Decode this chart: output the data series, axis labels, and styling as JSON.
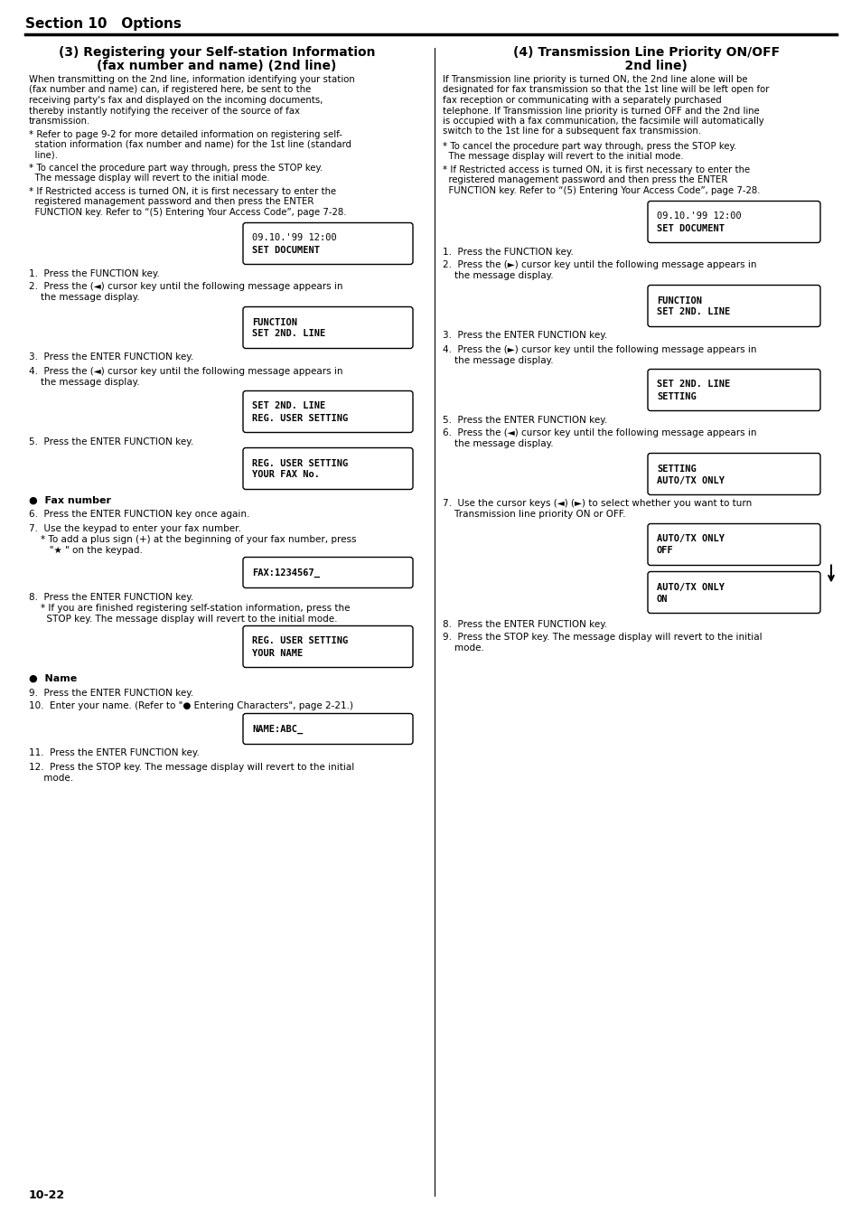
{
  "page_bg": "#ffffff",
  "section_title": "Section 10   Options",
  "footer_text": "10-22",
  "left_col": {
    "heading1": "(3) Registering your Self-station Information",
    "heading2": "(fax number and name) (2nd line)",
    "intro_lines": [
      "When transmitting on the 2nd line, information identifying your station",
      "(fax number and name) can, if registered here, be sent to the",
      "receiving party's fax and displayed on the incoming documents,",
      "thereby instantly notifying the receiver of the source of fax",
      "transmission."
    ],
    "bullet1_lines": [
      "* Refer to page 9-2 for more detailed information on registering self-",
      "  station information (fax number and name) for the 1st line (standard",
      "  line)."
    ],
    "bullet2_lines": [
      "* To cancel the procedure part way through, press the STOP key.",
      "  The message display will revert to the initial mode."
    ],
    "bullet3_lines": [
      "* If Restricted access is turned ON, it is first necessary to enter the",
      "  registered management password and then press the ENTER",
      "  FUNCTION key. Refer to “(5) Entering Your Access Code”, page 7-28."
    ],
    "box1_lines": [
      "09.10.'99 12:00",
      "SET DOCUMENT"
    ],
    "step1": "1.  Press the FUNCTION key.",
    "step2_lines": [
      "2.  Press the (◄) cursor key until the following message appears in",
      "    the message display."
    ],
    "box2_lines": [
      "FUNCTION",
      "SET 2ND. LINE"
    ],
    "step3": "3.  Press the ENTER FUNCTION key.",
    "step4_lines": [
      "4.  Press the (◄) cursor key until the following message appears in",
      "    the message display."
    ],
    "box3_lines": [
      "SET 2ND. LINE",
      "REG. USER SETTING"
    ],
    "step5": "5.  Press the ENTER FUNCTION key.",
    "box4_lines": [
      "REG. USER SETTING",
      "YOUR FAX No."
    ],
    "fax_heading": "●  Fax number",
    "step6": "6.  Press the ENTER FUNCTION key once again.",
    "step7_lines": [
      "7.  Use the keypad to enter your fax number.",
      "    * To add a plus sign (+) at the beginning of your fax number, press",
      "       \"★ \" on the keypad."
    ],
    "box5_lines": [
      "FAX:1234567_"
    ],
    "step8_lines": [
      "8.  Press the ENTER FUNCTION key.",
      "    * If you are finished registering self-station information, press the",
      "      STOP key. The message display will revert to the initial mode."
    ],
    "box6_lines": [
      "REG. USER SETTING",
      "YOUR NAME"
    ],
    "name_heading": "●  Name",
    "step9": "9.  Press the ENTER FUNCTION key.",
    "step10": "10.  Enter your name. (Refer to \"● Entering Characters\", page 2-21.)",
    "box7_lines": [
      "NAME:ABC_"
    ],
    "step11": "11.  Press the ENTER FUNCTION key.",
    "step12_lines": [
      "12.  Press the STOP key. The message display will revert to the initial",
      "     mode."
    ]
  },
  "right_col": {
    "heading1": "(4) Transmission Line Priority ON/OFF",
    "heading2": "2nd line)",
    "intro_lines": [
      "If Transmission line priority is turned ON, the 2nd line alone will be",
      "designated for fax transmission so that the 1st line will be left open for",
      "fax reception or communicating with a separately purchased",
      "telephone. If Transmission line priority is turned OFF and the 2nd line",
      "is occupied with a fax communication, the facsimile will automatically",
      "switch to the 1st line for a subsequent fax transmission."
    ],
    "bullet1_lines": [
      "* To cancel the procedure part way through, press the STOP key.",
      "  The message display will revert to the initial mode."
    ],
    "bullet2_lines": [
      "* If Restricted access is turned ON, it is first necessary to enter the",
      "  registered management password and then press the ENTER",
      "  FUNCTION key. Refer to “(5) Entering Your Access Code”, page 7-28."
    ],
    "box1_lines": [
      "09.10.'99 12:00",
      "SET DOCUMENT"
    ],
    "step1": "1.  Press the FUNCTION key.",
    "step2_lines": [
      "2.  Press the (►) cursor key until the following message appears in",
      "    the message display."
    ],
    "box2_lines": [
      "FUNCTION",
      "SET 2ND. LINE"
    ],
    "step3": "3.  Press the ENTER FUNCTION key.",
    "step4_lines": [
      "4.  Press the (►) cursor key until the following message appears in",
      "    the message display."
    ],
    "box3_lines": [
      "SET 2ND. LINE",
      "SETTING"
    ],
    "step5": "5.  Press the ENTER FUNCTION key.",
    "step6_lines": [
      "6.  Press the (◄) cursor key until the following message appears in",
      "    the message display."
    ],
    "box4_lines": [
      "SETTING",
      "AUTO/TX ONLY"
    ],
    "step7_lines": [
      "7.  Use the cursor keys (◄) (►) to select whether you want to turn",
      "    Transmission line priority ON or OFF."
    ],
    "box5_lines": [
      "AUTO/TX ONLY",
      "OFF"
    ],
    "box6_lines": [
      "AUTO/TX ONLY",
      "ON"
    ],
    "step8": "8.  Press the ENTER FUNCTION key.",
    "step9_lines": [
      "9.  Press the STOP key. The message display will revert to the initial",
      "    mode."
    ]
  }
}
